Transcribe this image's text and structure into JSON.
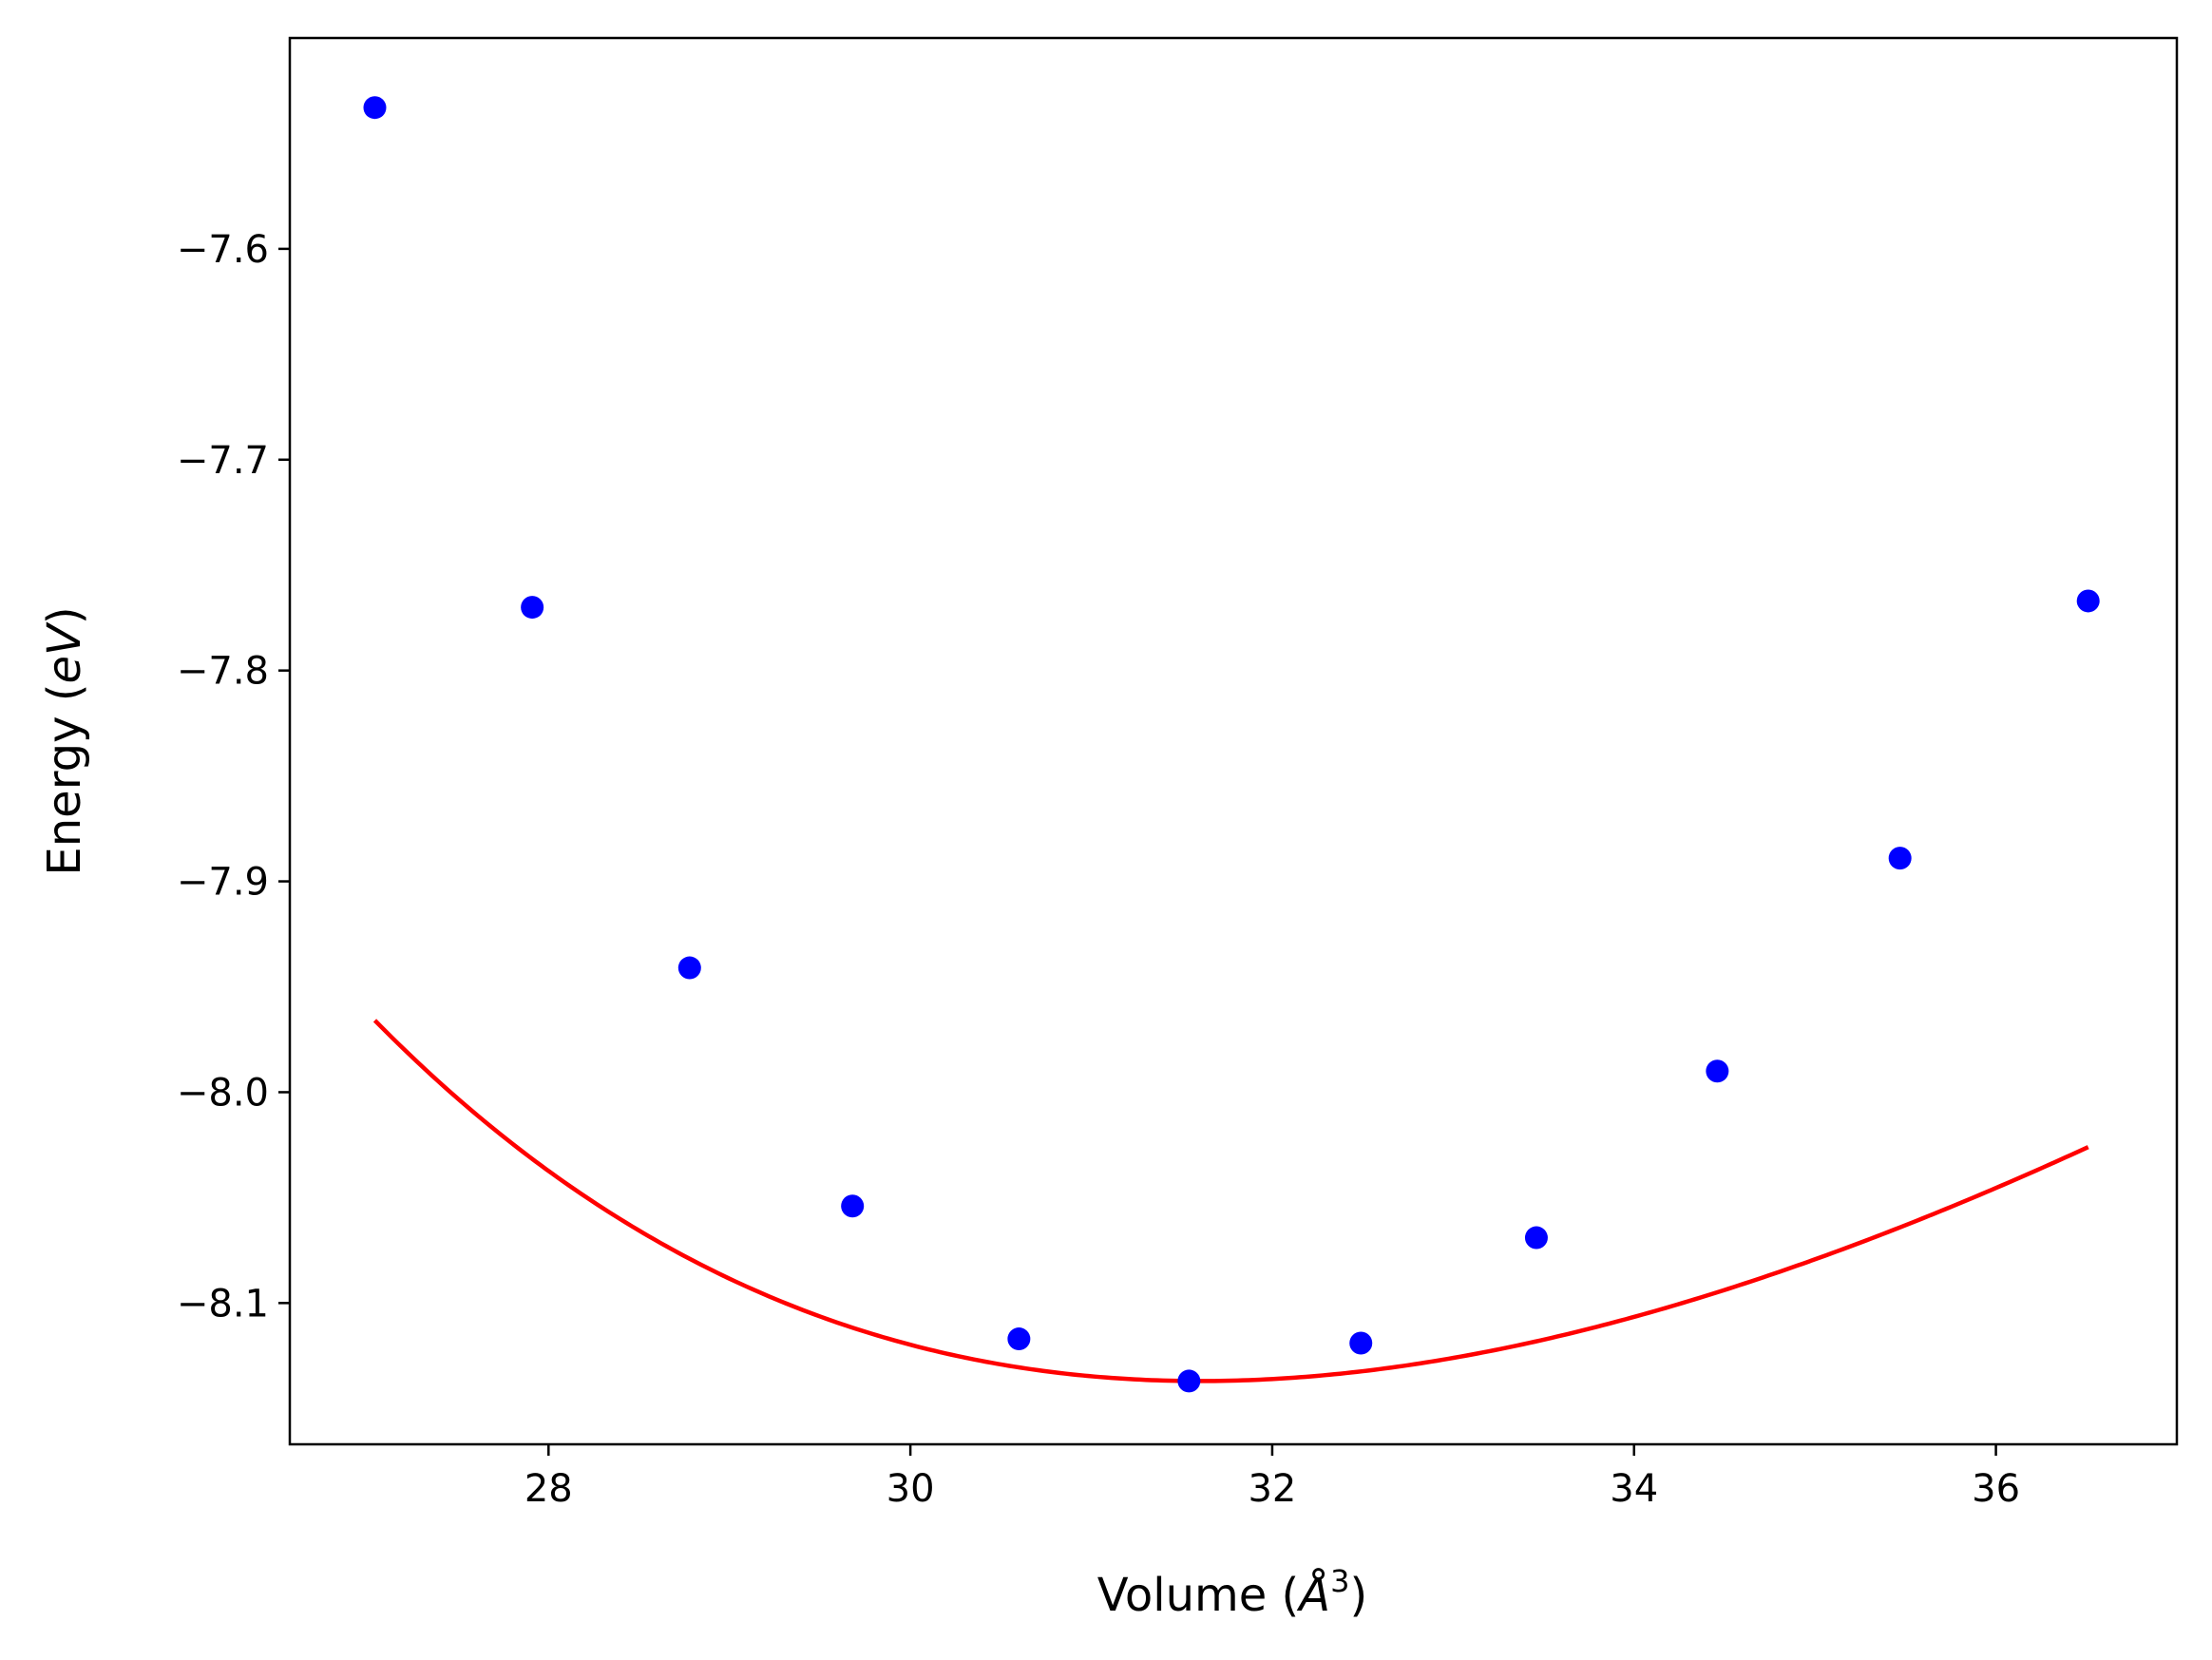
{
  "chart_data": {
    "type": "line",
    "title": "",
    "xlabel": "Volume (Å³)",
    "ylabel": "Energy (eV)",
    "xlabel_parts": {
      "prefix": "Volume (",
      "symbol": "Å",
      "sup": "3",
      "suffix": ")"
    },
    "ylabel_parts": {
      "prefix": "Energy (",
      "unit": "eV",
      "suffix": ")"
    },
    "xlim": [
      26.57,
      37.0
    ],
    "ylim": [
      -8.167,
      -7.5
    ],
    "xticks": [
      28,
      30,
      32,
      34,
      36
    ],
    "xtick_labels": [
      "28",
      "30",
      "32",
      "34",
      "36"
    ],
    "yticks": [
      -7.6,
      -7.7,
      -7.8,
      -7.9,
      -8.0,
      -8.1
    ],
    "ytick_labels": [
      "−7.6",
      "−7.7",
      "−7.8",
      "−7.9",
      "−8.0",
      "−8.1"
    ],
    "grid": false,
    "series": [
      {
        "style": "markers",
        "color": "#0000ff",
        "x": [
          27.04,
          27.91,
          28.78,
          29.68,
          30.6,
          31.54,
          32.49,
          33.46,
          34.46,
          35.47,
          36.51
        ],
        "y": [
          -7.533,
          -7.77,
          -7.941,
          -8.054,
          -8.117,
          -8.137,
          -8.119,
          -8.069,
          -7.99,
          -7.889,
          -7.767
        ]
      },
      {
        "style": "fit-curve",
        "color": "#ff0000",
        "fit": {
          "type": "birch-murnaghan",
          "E0": -8.137,
          "V0": 31.6,
          "B0_eV_per_A3": 0.3846,
          "B0_prime": 4.8
        },
        "x_range": [
          27.04,
          36.51
        ]
      }
    ]
  }
}
